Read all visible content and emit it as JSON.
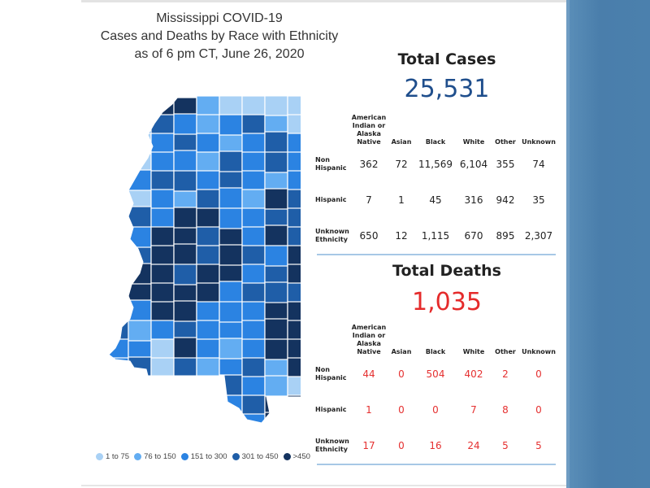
{
  "title": {
    "line1": "Mississippi COVID-19",
    "line2": "Cases and Deaths by Race with Ethnicity",
    "line3": "as of 6 pm CT, June 26, 2020"
  },
  "cases": {
    "heading": "Total Cases",
    "total": "25,531",
    "columns": [
      "American Indian or Alaska Native",
      "Asian",
      "Black",
      "White",
      "Other",
      "Unknown"
    ],
    "rows": [
      {
        "label": "Non Hispanic",
        "values": [
          "362",
          "72",
          "11,569",
          "6,104",
          "355",
          "74"
        ]
      },
      {
        "label": "Hispanic",
        "values": [
          "7",
          "1",
          "45",
          "316",
          "942",
          "35"
        ]
      },
      {
        "label": "Unknown Ethnicity",
        "values": [
          "650",
          "12",
          "1,115",
          "670",
          "895",
          "2,307"
        ]
      }
    ]
  },
  "deaths": {
    "heading": "Total Deaths",
    "total": "1,035",
    "columns": [
      "American Indian or Alaska Native",
      "Asian",
      "Black",
      "White",
      "Other",
      "Unknown"
    ],
    "rows": [
      {
        "label": "Non Hispanic",
        "values": [
          "44",
          "0",
          "504",
          "402",
          "2",
          "0"
        ]
      },
      {
        "label": "Hispanic",
        "values": [
          "1",
          "0",
          "0",
          "7",
          "8",
          "0"
        ]
      },
      {
        "label": "Unknown Ethnicity",
        "values": [
          "17",
          "0",
          "16",
          "24",
          "5",
          "5"
        ]
      }
    ]
  },
  "legend": [
    {
      "label": "1 to 75",
      "color": "#a9d1f5"
    },
    {
      "label": "76 to 150",
      "color": "#63adf2"
    },
    {
      "label": "151 to 300",
      "color": "#2b83e2"
    },
    {
      "label": "301 to 450",
      "color": "#1f5ea8"
    },
    {
      "label": ">450",
      "color": "#14335f"
    }
  ],
  "colors": {
    "cases_total": "#1f4e8c",
    "deaths_total": "#e52b2b",
    "separator": "#a7c8e6"
  },
  "map": {
    "name": "Mississippi county map",
    "color_bins": [
      "#a9d1f5",
      "#63adf2",
      "#2b83e2",
      "#1f5ea8",
      "#14335f"
    ]
  }
}
